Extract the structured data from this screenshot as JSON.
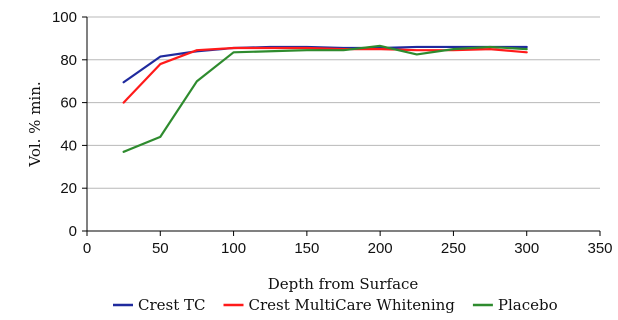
{
  "chart_data": {
    "type": "line",
    "xlabel": "Depth from Surface",
    "ylabel": "Vol. % min.",
    "xlim": [
      0,
      350
    ],
    "ylim": [
      0,
      100
    ],
    "xticks": [
      0,
      50,
      100,
      150,
      200,
      250,
      300,
      350
    ],
    "yticks": [
      0,
      20,
      40,
      60,
      80,
      100
    ],
    "grid": "horizontal",
    "legend_position": "bottom",
    "x": [
      25,
      50,
      75,
      100,
      125,
      150,
      175,
      200,
      225,
      250,
      275,
      300
    ],
    "series": [
      {
        "name": "Crest TC",
        "color": "#1f2a9e",
        "values": [
          69.5,
          81.5,
          84,
          85.5,
          86,
          86,
          85.5,
          85.5,
          86,
          86,
          86,
          86
        ]
      },
      {
        "name": "Crest MultiCare Whitening",
        "color": "#ff1a1a",
        "values": [
          60,
          78,
          84.5,
          85.5,
          85.5,
          85.5,
          85,
          85,
          84.5,
          84.5,
          85,
          83.5
        ]
      },
      {
        "name": "Placebo",
        "color": "#2e8b2e",
        "values": [
          37,
          44,
          70,
          83.5,
          84,
          84.5,
          84.5,
          86.5,
          82.5,
          85,
          86,
          85
        ]
      }
    ]
  }
}
